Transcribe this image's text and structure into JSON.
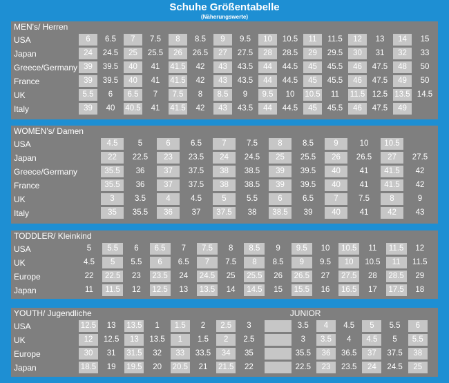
{
  "title": "Schuhe Größentabelle",
  "subtitle": "(Näherungswerte)",
  "sections": [
    {
      "id": "men",
      "title": "MEN's/ Herren",
      "rows": [
        {
          "label": "USA",
          "values": [
            "6",
            "6.5",
            "7",
            "7.5",
            "8",
            "8.5",
            "9",
            "9.5",
            "10",
            "10.5",
            "11",
            "11.5",
            "12",
            "13",
            "14",
            "15"
          ]
        },
        {
          "label": "Japan",
          "values": [
            "24",
            "24.5",
            "25",
            "25.5",
            "26",
            "26.5",
            "27",
            "27.5",
            "28",
            "28.5",
            "29",
            "29.5",
            "30",
            "31",
            "32",
            "33"
          ]
        },
        {
          "label": "Greece/Germany",
          "values": [
            "39",
            "39.5",
            "40",
            "41",
            "41.5",
            "42",
            "43",
            "43.5",
            "44",
            "44.5",
            "45",
            "45.5",
            "46",
            "47.5",
            "48",
            "50"
          ]
        },
        {
          "label": "France",
          "values": [
            "39",
            "39.5",
            "40",
            "41",
            "41.5",
            "42",
            "43",
            "43.5",
            "44",
            "44.5",
            "45",
            "45.5",
            "46",
            "47.5",
            "49",
            "50"
          ]
        },
        {
          "label": "UK",
          "values": [
            "5.5",
            "6",
            "6.5",
            "7",
            "7.5",
            "8",
            "8.5",
            "9",
            "9.5",
            "10",
            "10.5",
            "11",
            "11.5",
            "12.5",
            "13.5",
            "14.5"
          ]
        },
        {
          "label": "Italy",
          "values": [
            "39",
            "40",
            "40.5",
            "41",
            "41.5",
            "42",
            "43",
            "43.5",
            "44",
            "44.5",
            "45",
            "45.5",
            "46",
            "47.5",
            "49",
            ""
          ]
        }
      ]
    },
    {
      "id": "women",
      "title": "WOMEN's/ Damen",
      "rows": [
        {
          "label": "USA",
          "values": [
            "4.5",
            "5",
            "6",
            "6.5",
            "7",
            "7.5",
            "8",
            "8.5",
            "9",
            "10",
            "10.5",
            ""
          ]
        },
        {
          "label": "Japan",
          "values": [
            "22",
            "22.5",
            "23",
            "23.5",
            "24",
            "24.5",
            "25",
            "25.5",
            "26",
            "26.5",
            "27",
            "27.5"
          ]
        },
        {
          "label": "Greece/Germany",
          "values": [
            "35.5",
            "36",
            "37",
            "37.5",
            "38",
            "38.5",
            "39",
            "39.5",
            "40",
            "41",
            "41.5",
            "42"
          ]
        },
        {
          "label": "France",
          "values": [
            "35.5",
            "36",
            "37",
            "37.5",
            "38",
            "38.5",
            "39",
            "39.5",
            "40",
            "41",
            "41.5",
            "42"
          ]
        },
        {
          "label": "UK",
          "values": [
            "3",
            "3.5",
            "4",
            "4.5",
            "5",
            "5.5",
            "6",
            "6.5",
            "7",
            "7.5",
            "8",
            "9"
          ]
        },
        {
          "label": "Italy",
          "values": [
            "35",
            "35.5",
            "36",
            "37",
            "37.5",
            "38",
            "38.5",
            "39",
            "40",
            "41",
            "42",
            "43"
          ]
        }
      ]
    },
    {
      "id": "toddler",
      "title": "TODDLER/ Kleinkind",
      "rows": [
        {
          "label": "USA",
          "values": [
            "5",
            "5.5",
            "6",
            "6.5",
            "7",
            "7.5",
            "8",
            "8.5",
            "9",
            "9.5",
            "10",
            "10.5",
            "11",
            "11.5",
            "12"
          ]
        },
        {
          "label": "UK",
          "values": [
            "4.5",
            "5",
            "5.5",
            "6",
            "6.5",
            "7",
            "7.5",
            "8",
            "8.5",
            "9",
            "9.5",
            "10",
            "10.5",
            "11",
            "11.5"
          ]
        },
        {
          "label": "Europe",
          "values": [
            "22",
            "22.5",
            "23",
            "23.5",
            "24",
            "24.5",
            "25",
            "25.5",
            "26",
            "26.5",
            "27",
            "27.5",
            "28",
            "28.5",
            "29"
          ]
        },
        {
          "label": "Japan",
          "values": [
            "11",
            "11.5",
            "12",
            "12.5",
            "13",
            "13.5",
            "14",
            "14.5",
            "15",
            "15.5",
            "16",
            "16.5",
            "17",
            "17.5",
            "18"
          ]
        }
      ]
    },
    {
      "id": "youth",
      "title": "YOUTH/ Jugendliche",
      "junior_title": "JUNIOR",
      "rows": [
        {
          "label": "USA",
          "values": [
            "12.5",
            "13",
            "13.5",
            "1",
            "1.5",
            "2",
            "2.5",
            "3",
            "",
            "3.5",
            "4",
            "4.5",
            "5",
            "5.5",
            "6"
          ]
        },
        {
          "label": "UK",
          "values": [
            "12",
            "12.5",
            "13",
            "13.5",
            "1",
            "1.5",
            "2",
            "2.5",
            "",
            "3",
            "3.5",
            "4",
            "4.5",
            "5",
            "5.5"
          ]
        },
        {
          "label": "Europe",
          "values": [
            "30",
            "31",
            "31.5",
            "32",
            "33",
            "33.5",
            "34",
            "35",
            "",
            "35.5",
            "36",
            "36.5",
            "37",
            "37.5",
            "38"
          ]
        },
        {
          "label": "Japan",
          "values": [
            "18.5",
            "19",
            "19.5",
            "20",
            "20.5",
            "21",
            "21.5",
            "22",
            "",
            "22.5",
            "23",
            "23.5",
            "24",
            "24.5",
            "25"
          ]
        }
      ]
    }
  ]
}
